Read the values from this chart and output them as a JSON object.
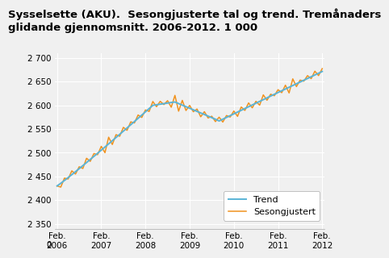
{
  "title": "Sysselsette (AKU).  Sesongjusterte tal og trend. Tremånaders\nglidande gjennomsnitt. 2006-2012. 1 000",
  "trend_color": "#5ab4d6",
  "seasonal_color": "#f0921e",
  "background_color": "#f0f0f0",
  "plot_bg_color": "#f0f0f0",
  "grid_color": "#ffffff",
  "legend_labels": [
    "Trend",
    "Sesongjustert"
  ],
  "title_fontsize": 9.5,
  "ytick_labels": [
    "0",
    "2 350",
    "2 400",
    "2 450",
    "2 500",
    "2 550",
    "2 600",
    "2 650",
    "2 700"
  ],
  "xlabel_ticks": [
    "Feb.\n2006",
    "Feb.\n2007",
    "Feb.\n2008",
    "Feb.\n2009",
    "Feb.\n2010",
    "Feb.\n2011",
    "Feb.\n2012"
  ]
}
